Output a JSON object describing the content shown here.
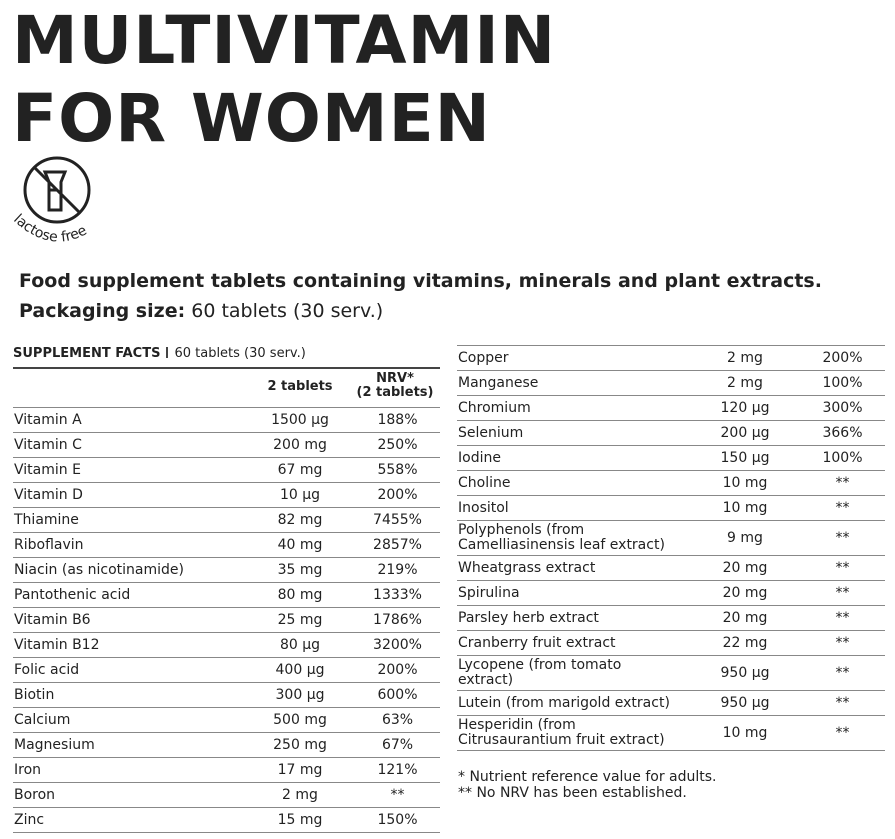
{
  "header": {
    "title_lines": [
      "MULTIVITAMIN",
      "FOR WOMEN"
    ],
    "badge": "lactose free"
  },
  "description": "Food supplement tablets containing vitamins, minerals and plant extracts.",
  "packaging": {
    "label": "Packaging size:",
    "value": "60 tablets (30 serv.)"
  },
  "left_table": {
    "title": "SUPPLEMENT FACTS",
    "serving": "60 tablets (30 serv.)",
    "columns": [
      "2 tablets",
      "NRV*\n(2 tablets)"
    ],
    "rows": [
      [
        "Vitamin A",
        "1500 µg",
        "188%"
      ],
      [
        "Vitamin C",
        "200 mg",
        "250%"
      ],
      [
        "Vitamin E",
        "67 mg",
        "558%"
      ],
      [
        "Vitamin D",
        "10 µg",
        "200%"
      ],
      [
        "Thiamine",
        "82 mg",
        "7455%"
      ],
      [
        "Riboflavin",
        "40 mg",
        "2857%"
      ],
      [
        "Niacin (as nicotinamide)",
        "35 mg",
        "219%"
      ],
      [
        "Pantothenic acid",
        "80 mg",
        "1333%"
      ],
      [
        "Vitamin B6",
        "25 mg",
        "1786%"
      ],
      [
        "Vitamin B12",
        "80 µg",
        "3200%"
      ],
      [
        "Folic acid",
        "400 µg",
        "200%"
      ],
      [
        "Biotin",
        "300 µg",
        "600%"
      ],
      [
        "Calcium",
        "500 mg",
        "63%"
      ],
      [
        "Magnesium",
        "250 mg",
        "67%"
      ],
      [
        "Iron",
        "17 mg",
        "121%"
      ],
      [
        "Boron",
        "2 mg",
        "**"
      ],
      [
        "Zinc",
        "15 mg",
        "150%"
      ]
    ]
  },
  "right_table": {
    "rows": [
      [
        "Copper",
        "2 mg",
        "200%"
      ],
      [
        "Manganese",
        "2 mg",
        "100%"
      ],
      [
        "Chromium",
        "120 µg",
        "300%"
      ],
      [
        "Selenium",
        "200 µg",
        "366%"
      ],
      [
        "Iodine",
        "150 µg",
        "100%"
      ],
      [
        "Choline",
        "10 mg",
        "**"
      ],
      [
        "Inositol",
        "10 mg",
        "**"
      ],
      [
        "Polyphenols (from\nCamelliasinensis leaf extract)",
        "9 mg",
        "**"
      ],
      [
        "Wheatgrass extract",
        "20 mg",
        "**"
      ],
      [
        "Spirulina",
        "20 mg",
        "**"
      ],
      [
        "Parsley herb extract",
        "20 mg",
        "**"
      ],
      [
        "Cranberry fruit extract",
        "22 mg",
        "**"
      ],
      [
        "Lycopene (from tomato\nextract)",
        "950 µg",
        "**"
      ],
      [
        "Lutein (from marigold extract)",
        "950 µg",
        "**"
      ],
      [
        "Hesperidin (from\nCitrusaurantium fruit extract)",
        "10 mg",
        "**"
      ]
    ]
  },
  "footnotes": [
    "* Nutrient reference value for adults.",
    "** No NRV has been established."
  ]
}
